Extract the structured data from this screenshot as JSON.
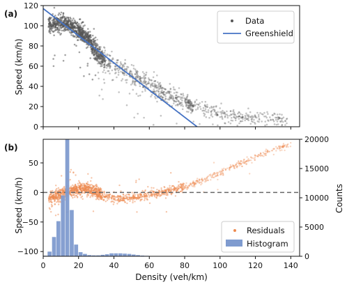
{
  "chart_data": [
    {
      "type": "scatter",
      "panel_label": "(a)",
      "ylabel": "Speed (km/h)",
      "xlim": [
        0,
        145
      ],
      "ylim": [
        0,
        120
      ],
      "y_ticks": [
        0,
        20,
        40,
        60,
        80,
        100,
        120
      ],
      "x_ticks": [
        0,
        20,
        40,
        60,
        80,
        100,
        120,
        140
      ],
      "x_tick_labels_shown": false,
      "legend": {
        "position": "top-right",
        "entries": [
          "Data",
          "Greenshield"
        ]
      },
      "series": [
        {
          "name": "Data",
          "kind": "scatter",
          "color": "#555555",
          "approx_trend": {
            "x": [
              2,
              8,
              14,
              20,
              26,
              30,
              34,
              38,
              45,
              55,
              65,
              75,
              85,
              100,
              120,
              138
            ],
            "y": [
              100,
              103,
              102,
              96,
              86,
              74,
              66,
              62,
              56,
              46,
              36,
              28,
              21,
              14,
              9,
              7
            ]
          }
        },
        {
          "name": "Greenshield",
          "kind": "line",
          "color": "#4472c4",
          "x": [
            0,
            87
          ],
          "y": [
            117,
            0
          ]
        }
      ]
    },
    {
      "type": "scatter",
      "panel_label": "(b)",
      "xlabel": "Density (veh/km)",
      "ylabel": "Speed (km/h)",
      "ylabel_right": "Counts",
      "xlim": [
        0,
        145
      ],
      "ylim": [
        -108,
        90
      ],
      "ylim_right": [
        0,
        20000
      ],
      "x_ticks": [
        0,
        20,
        40,
        60,
        80,
        100,
        120,
        140
      ],
      "y_ticks": [
        -100,
        -50,
        0,
        50
      ],
      "y_ticks_right": [
        0,
        5000,
        10000,
        15000,
        20000
      ],
      "legend": {
        "position": "bottom-right",
        "entries": [
          "Residuals",
          "Histogram"
        ]
      },
      "series": [
        {
          "name": "Residuals",
          "kind": "scatter",
          "color": "#ee8a4f",
          "approx_trend": {
            "x": [
              2,
              6,
              10,
              15,
              20,
              25,
              30,
              35,
              40,
              45,
              50,
              55,
              60,
              65,
              70,
              75,
              80,
              90,
              100,
              110,
              120,
              130,
              140
            ],
            "y": [
              -10,
              -8,
              -3,
              3,
              7,
              6,
              0,
              -6,
              -10,
              -11,
              -10,
              -7,
              -4,
              -1,
              2,
              5,
              10,
              20,
              33,
              47,
              60,
              72,
              80
            ]
          }
        },
        {
          "name": "Histogram",
          "kind": "bar",
          "color": "#7f9bcf",
          "axis": "right",
          "bin_centers": [
            1.25,
            3.75,
            6.25,
            8.75,
            11.25,
            13.75,
            16.25,
            18.75,
            21.25,
            23.75,
            26.25,
            28.75,
            31.25,
            33.75,
            36.25,
            38.75,
            41.25,
            43.75,
            46.25,
            48.75,
            51.25,
            53.75,
            56.25,
            58.75,
            61.25
          ],
          "counts": [
            100,
            800,
            3300,
            6000,
            10400,
            20000,
            7900,
            2000,
            700,
            400,
            200,
            150,
            150,
            250,
            350,
            500,
            500,
            500,
            450,
            400,
            300,
            200,
            120,
            80,
            40
          ]
        }
      ],
      "reference_line": {
        "y": 0,
        "style": "dashed",
        "color": "#666666"
      }
    }
  ]
}
